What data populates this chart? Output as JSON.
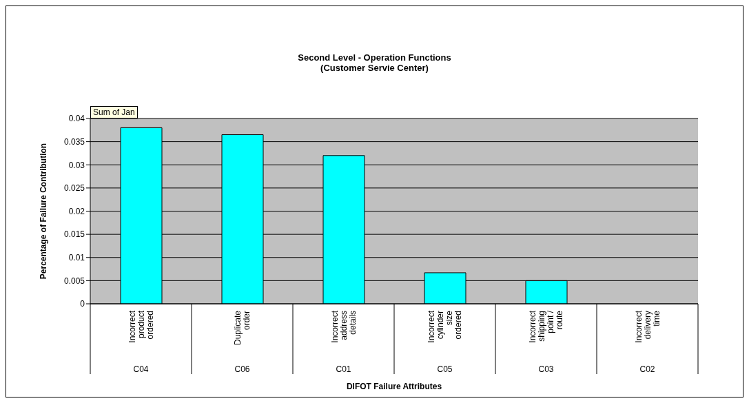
{
  "chart_data": {
    "type": "bar",
    "title": "Second Level - Operation Functions",
    "subtitle": "(Customer Servie Center)",
    "xlabel": "DIFOT Failure Attributes",
    "ylabel": "Percentage of Failure Contribution",
    "categories": [
      "Incorrect product ordered",
      "Duplicate order",
      "Incorrect address details",
      "Incorrect cylinder size ordered",
      "Incorrect shipping point / route",
      "Incorrect delivery time"
    ],
    "values": [
      0.038,
      0.0365,
      0.032,
      0.0067,
      0.005,
      0
    ],
    "color": "#00ffff",
    "ylim": [
      0,
      0.04
    ],
    "yticks": [
      0,
      0.005,
      0.01,
      0.015,
      0.02,
      0.025,
      0.03,
      0.035,
      0.04
    ],
    "grid": "y",
    "legend": false,
    "annotations": [
      "Sum of Jan",
      "C04",
      "C06",
      "C01",
      "C05",
      "C03",
      "C02"
    ]
  }
}
